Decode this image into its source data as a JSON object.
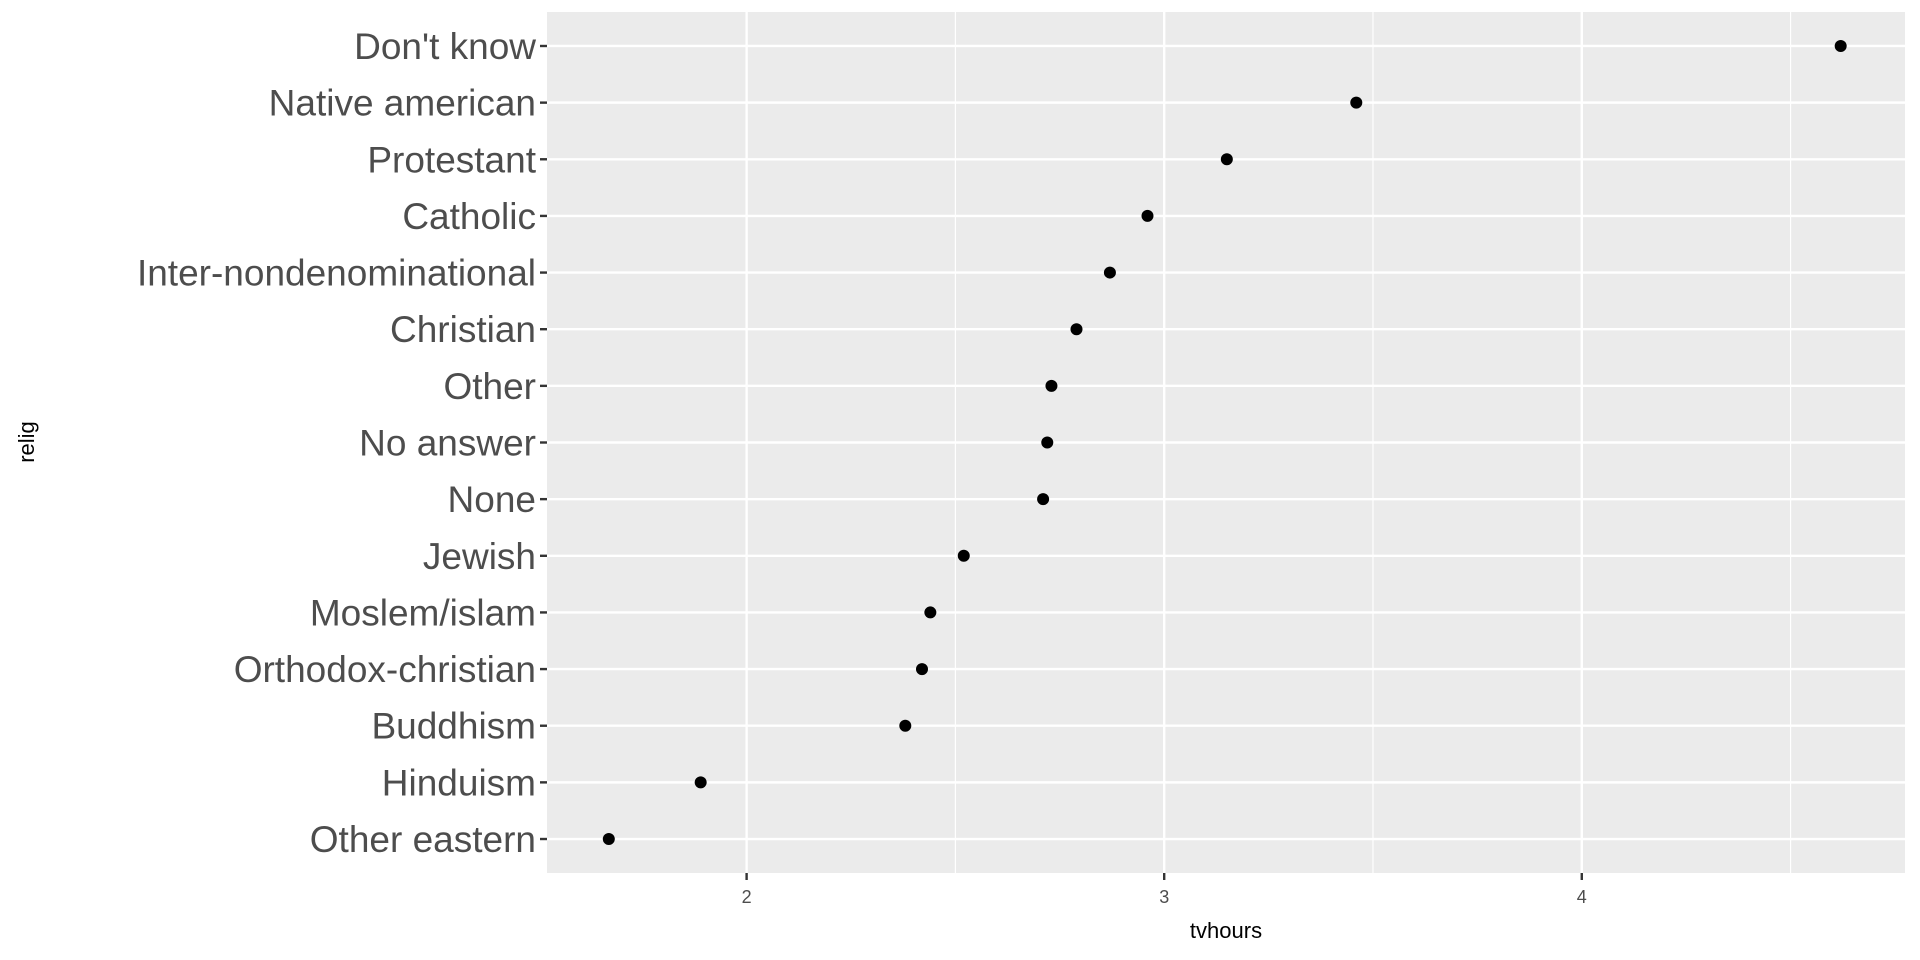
{
  "chart_data": {
    "type": "scatter",
    "xlabel": "tvhours",
    "ylabel": "relig",
    "xlim": [
      1.522,
      4.774
    ],
    "x_ticks": [
      2,
      3,
      4
    ],
    "x_tick_labels": [
      "2",
      "3",
      "4"
    ],
    "grid": true,
    "background": "#ebebeb",
    "point_color": "#000000",
    "categories": [
      "Other eastern",
      "Hinduism",
      "Buddhism",
      "Orthodox-christian",
      "Moslem/islam",
      "Jewish",
      "None",
      "No answer",
      "Other",
      "Christian",
      "Inter-nondenominational",
      "Catholic",
      "Protestant",
      "Native american",
      "Don't know"
    ],
    "values": [
      1.67,
      1.89,
      2.38,
      2.42,
      2.44,
      2.52,
      2.71,
      2.72,
      2.73,
      2.79,
      2.87,
      2.96,
      3.15,
      3.46,
      4.62
    ]
  }
}
